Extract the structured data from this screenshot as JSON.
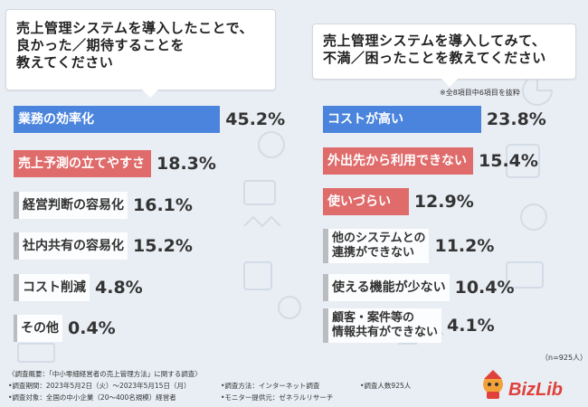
{
  "left_panel": {
    "question": "売上管理システムを導入したことで、\n良かった／期待することを\n教えてください"
  },
  "right_panel": {
    "question": "売上管理システムを導入してみて、\n不満／困ったことを教えてください",
    "note": "※全8項目中6項目を抜粋"
  },
  "colors": {
    "blue": "#4a84dc",
    "red": "#e06b6b",
    "gray": "#b9bcc1",
    "white_text": "#ffffff",
    "dark_text": "#333333"
  },
  "chart_data": [
    {
      "type": "bar",
      "orientation": "horizontal",
      "categories": [
        "業務の効率化",
        "売上予測の立てやすさ",
        "経営判断の容易化",
        "社内共有の容易化",
        "コスト削減",
        "その他"
      ],
      "values": [
        45.2,
        18.3,
        16.1,
        15.2,
        4.8,
        0.4
      ],
      "value_labels": [
        "45.2%",
        "18.3%",
        "16.1%",
        "15.2%",
        "4.8%",
        "0.4%"
      ]
    },
    {
      "type": "bar",
      "orientation": "horizontal",
      "categories": [
        "コストが高い",
        "外出先から利用できない",
        "使いづらい",
        "他のシステムとの\n連携ができない",
        "使える機能が少ない",
        "顧客・案件等の\n情報共有ができない"
      ],
      "values": [
        23.8,
        15.4,
        12.9,
        11.2,
        10.4,
        4.1
      ],
      "value_labels": [
        "23.8%",
        "15.4%",
        "12.9%",
        "11.2%",
        "10.4%",
        "4.1%"
      ]
    }
  ],
  "sample_size": "（n=925人）",
  "footer": {
    "line1": "〈調査概要：「中小零細経営者の売上管理方法」に関する調査〉",
    "period": "•調査期間：2023年5月2日（火）〜2023年5月15日（月）",
    "method": "•調査方法：インターネット調査",
    "count": "•調査人数925人",
    "target": "•調査対象：全国の中小企業（20〜400名規模）経営者",
    "provider": "•モニター提供元：ゼネラルリサーチ"
  },
  "logo": {
    "text": "BizLib"
  }
}
